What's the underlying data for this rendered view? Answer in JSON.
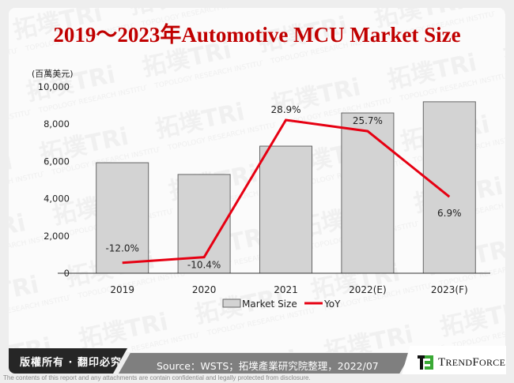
{
  "title": "2019～2023年Automotive MCU Market Size",
  "chart_data": {
    "type": "bar+line",
    "title": "2019～2023年Automotive MCU Market Size",
    "categories": [
      "2019",
      "2020",
      "2021",
      "2022(E)",
      "2023(F)"
    ],
    "series": [
      {
        "name": "Market Size",
        "type": "bar",
        "axis": "left",
        "color": "#d3d3d3",
        "values": [
          5930,
          5300,
          6820,
          8600,
          9200
        ]
      },
      {
        "name": "YoY",
        "type": "line",
        "axis": "right(hidden)",
        "color": "#e60012",
        "values": [
          -12.0,
          -10.4,
          28.9,
          25.7,
          6.9
        ],
        "labels": [
          "-12.0%",
          "-10.4%",
          "28.9%",
          "25.7%",
          "6.9%"
        ]
      }
    ],
    "ylabel": "(百萬美元)",
    "ylim": [
      0,
      10000
    ],
    "yticks": [
      "0",
      "2,000",
      "4,000",
      "6,000",
      "8,000",
      "10,000"
    ],
    "grid": false,
    "legend_position": "bottom"
  },
  "legend": {
    "bar": "Market Size",
    "line": "YoY"
  },
  "footer": {
    "copyright": "版權所有 · 翻印必究",
    "source": "Source：WSTS；拓墣產業研究院整理，2022/07",
    "logo": "TRENDFORCE",
    "disclaimer": "The contents of this report and any attachments are contain confidential and legally protected from disclosure."
  }
}
